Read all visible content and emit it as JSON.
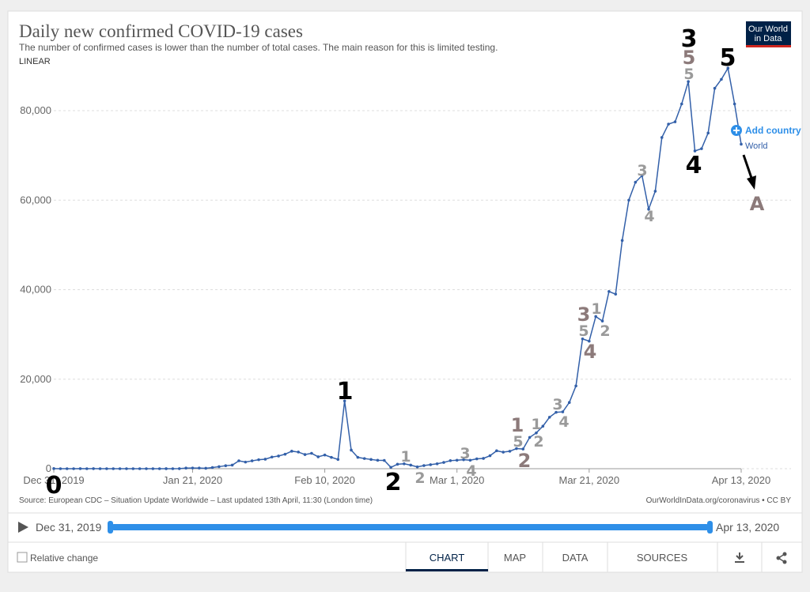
{
  "chart_data": {
    "type": "line",
    "title": "Daily new confirmed COVID-19 cases",
    "subtitle": "The number of confirmed cases is lower than the number of total cases. The main reason for this is limited testing.",
    "scale_label": "LINEAR",
    "logo": [
      "Our World",
      "in Data"
    ],
    "add_country": "Add country",
    "source": "Source: European CDC – Situation Update Worldwide – Last updated 13th April, 11:30 (London time)",
    "license": "OurWorldInData.org/coronavirus • CC BY",
    "timeline": {
      "start": "Dec 31, 2019",
      "end": "Apr 13, 2020"
    },
    "controls": {
      "relative": "Relative change",
      "tabs": [
        "CHART",
        "MAP",
        "DATA",
        "SOURCES"
      ]
    },
    "annotations": [
      "0",
      "1",
      "2",
      "1",
      "2",
      "3",
      "4",
      "1",
      "5",
      "2",
      "1",
      "2",
      "3",
      "4",
      "3",
      "5",
      "4",
      "1",
      "2",
      "3",
      "4",
      "3",
      "5",
      "5",
      "4",
      "5",
      "A"
    ],
    "x": [
      "2019-12-31",
      "2020-01-01",
      "2020-01-02",
      "2020-01-03",
      "2020-01-04",
      "2020-01-05",
      "2020-01-06",
      "2020-01-07",
      "2020-01-08",
      "2020-01-09",
      "2020-01-10",
      "2020-01-11",
      "2020-01-12",
      "2020-01-13",
      "2020-01-14",
      "2020-01-15",
      "2020-01-16",
      "2020-01-17",
      "2020-01-18",
      "2020-01-19",
      "2020-01-20",
      "2020-01-21",
      "2020-01-22",
      "2020-01-23",
      "2020-01-24",
      "2020-01-25",
      "2020-01-26",
      "2020-01-27",
      "2020-01-28",
      "2020-01-29",
      "2020-01-30",
      "2020-01-31",
      "2020-02-01",
      "2020-02-02",
      "2020-02-03",
      "2020-02-04",
      "2020-02-05",
      "2020-02-06",
      "2020-02-07",
      "2020-02-08",
      "2020-02-09",
      "2020-02-10",
      "2020-02-11",
      "2020-02-12",
      "2020-02-13",
      "2020-02-14",
      "2020-02-15",
      "2020-02-16",
      "2020-02-17",
      "2020-02-18",
      "2020-02-19",
      "2020-02-20",
      "2020-02-21",
      "2020-02-22",
      "2020-02-23",
      "2020-02-24",
      "2020-02-25",
      "2020-02-26",
      "2020-02-27",
      "2020-02-28",
      "2020-02-29",
      "2020-03-01",
      "2020-03-02",
      "2020-03-03",
      "2020-03-04",
      "2020-03-05",
      "2020-03-06",
      "2020-03-07",
      "2020-03-08",
      "2020-03-09",
      "2020-03-10",
      "2020-03-11",
      "2020-03-12",
      "2020-03-13",
      "2020-03-14",
      "2020-03-15",
      "2020-03-16",
      "2020-03-17",
      "2020-03-18",
      "2020-03-19",
      "2020-03-20",
      "2020-03-21",
      "2020-03-22",
      "2020-03-23",
      "2020-03-24",
      "2020-03-25",
      "2020-03-26",
      "2020-03-27",
      "2020-03-28",
      "2020-03-29",
      "2020-03-30",
      "2020-03-31",
      "2020-04-01",
      "2020-04-02",
      "2020-04-03",
      "2020-04-04",
      "2020-04-05",
      "2020-04-06",
      "2020-04-07",
      "2020-04-08",
      "2020-04-09",
      "2020-04-10",
      "2020-04-11",
      "2020-04-12",
      "2020-04-13"
    ],
    "series": [
      {
        "name": "World",
        "color": "#3360a9",
        "values": [
          27,
          0,
          0,
          0,
          17,
          0,
          15,
          0,
          0,
          0,
          0,
          0,
          0,
          1,
          1,
          0,
          0,
          4,
          0,
          17,
          136,
          151,
          140,
          97,
          266,
          453,
          673,
          797,
          1767,
          1480,
          1755,
          2005,
          2127,
          2603,
          2836,
          3239,
          3915,
          3721,
          3163,
          3436,
          2657,
          3063,
          2538,
          2071,
          15141,
          4156,
          2538,
          2273,
          2064,
          1885,
          1849,
          300,
          1000,
          1100,
          800,
          400,
          700,
          900,
          1100,
          1400,
          1800,
          1900,
          2000,
          1900,
          2200,
          2300,
          2900,
          4000,
          3700,
          3900,
          4500,
          4400,
          7000,
          8000,
          9500,
          11500,
          12600,
          12700,
          14800,
          18500,
          29000,
          28500,
          34000,
          33000,
          39600,
          39000,
          51000,
          60000,
          64000,
          65500,
          58000,
          62000,
          74000,
          77000,
          77500,
          81500,
          86500,
          71000,
          71500,
          75000,
          85000,
          87000,
          89500,
          81500,
          72500
        ]
      }
    ],
    "xlim": [
      "2019-12-31",
      "2020-04-13"
    ],
    "xticks": [
      {
        "value": "2019-12-31",
        "label": "Dec 31, 2019"
      },
      {
        "value": "2020-01-21",
        "label": "Jan 21, 2020"
      },
      {
        "value": "2020-02-10",
        "label": "Feb 10, 2020"
      },
      {
        "value": "2020-03-01",
        "label": "Mar 1, 2020"
      },
      {
        "value": "2020-03-21",
        "label": "Mar 21, 2020"
      },
      {
        "value": "2020-04-13",
        "label": "Apr 13, 2020"
      }
    ],
    "ylim": [
      0,
      80000
    ],
    "yticks": [
      {
        "value": 0,
        "label": "0"
      },
      {
        "value": 20000,
        "label": "20,000"
      },
      {
        "value": 40000,
        "label": "40,000"
      },
      {
        "value": 60000,
        "label": "60,000"
      },
      {
        "value": 80000,
        "label": "80,000"
      }
    ],
    "grid": true
  }
}
